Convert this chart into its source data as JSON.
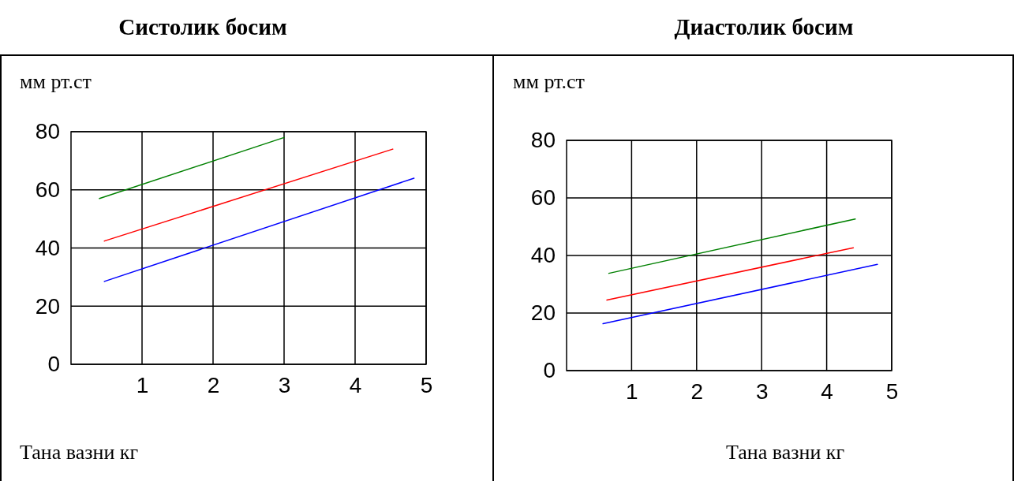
{
  "chart_data": [
    {
      "type": "line",
      "title": "Систолик босим",
      "ylabel": "мм рт.ст",
      "xlabel": "Тана вазни кг",
      "xlim": [
        0,
        5
      ],
      "ylim": [
        0,
        80
      ],
      "xticks": [
        1,
        2,
        3,
        4,
        5
      ],
      "yticks": [
        0,
        20,
        40,
        60,
        80
      ],
      "grid": true,
      "series": [
        {
          "color": "#008000",
          "x": [
            0.4,
            3.0
          ],
          "values": [
            57,
            78
          ]
        },
        {
          "color": "#ff0000",
          "x": [
            0.47,
            4.53
          ],
          "values": [
            42.4,
            74
          ]
        },
        {
          "color": "#0000ff",
          "x": [
            0.47,
            4.83
          ],
          "values": [
            28.5,
            64
          ]
        }
      ]
    },
    {
      "type": "line",
      "title": "Диастолик босим",
      "ylabel": "мм рт.ст",
      "xlabel": "Тана вазни кг",
      "xlim": [
        0,
        5
      ],
      "ylim": [
        0,
        80
      ],
      "xticks": [
        1,
        2,
        3,
        4,
        5
      ],
      "yticks": [
        0,
        20,
        40,
        60,
        80
      ],
      "grid": true,
      "series": [
        {
          "color": "#008000",
          "x": [
            0.65,
            4.44
          ],
          "values": [
            33.8,
            52.7
          ]
        },
        {
          "color": "#ff0000",
          "x": [
            0.62,
            4.41
          ],
          "values": [
            24.5,
            42.7
          ]
        },
        {
          "color": "#0000ff",
          "x": [
            0.56,
            4.78
          ],
          "values": [
            16.3,
            36.9
          ]
        }
      ]
    }
  ]
}
